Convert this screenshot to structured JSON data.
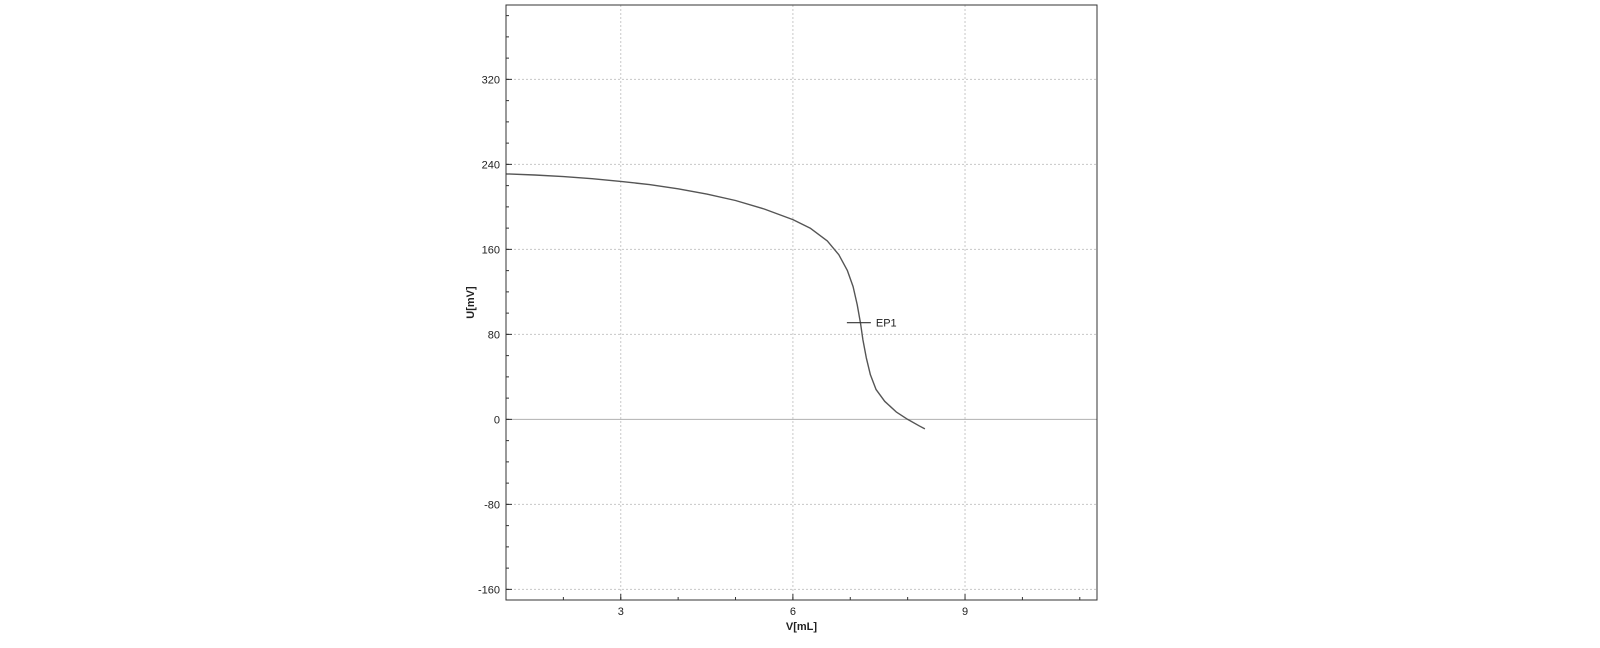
{
  "chart_data": {
    "type": "line",
    "xlabel": "V[mL]",
    "ylabel": "U[mV]",
    "xlim": [
      1,
      11.3
    ],
    "ylim": [
      -170,
      390
    ],
    "x_ticks": [
      3,
      6,
      9
    ],
    "y_ticks": [
      -160,
      -80,
      0,
      80,
      160,
      240,
      320
    ],
    "x_tick_labels": [
      "3",
      "6",
      "9"
    ],
    "y_tick_labels": [
      "-160",
      "-80",
      "0",
      "80",
      "160",
      "240",
      "320"
    ],
    "grid": true,
    "legend": "none",
    "series": [
      {
        "x": [
          1.0,
          1.5,
          2.0,
          2.5,
          3.0,
          3.5,
          4.0,
          4.5,
          5.0,
          5.5,
          6.0,
          6.3,
          6.6,
          6.8,
          6.95,
          7.05,
          7.12,
          7.18,
          7.22,
          7.28,
          7.35,
          7.45,
          7.6,
          7.8,
          8.0,
          8.2,
          8.3
        ],
        "y": [
          231,
          230,
          228.5,
          226.5,
          224,
          221,
          217,
          212,
          206,
          198,
          188,
          180,
          168,
          155,
          140,
          125,
          108,
          90,
          75,
          58,
          42,
          28,
          17,
          7,
          0,
          -6,
          -9
        ]
      }
    ],
    "annotations": [
      {
        "label": "EP1",
        "x": 7.15,
        "y": 91
      }
    ]
  }
}
